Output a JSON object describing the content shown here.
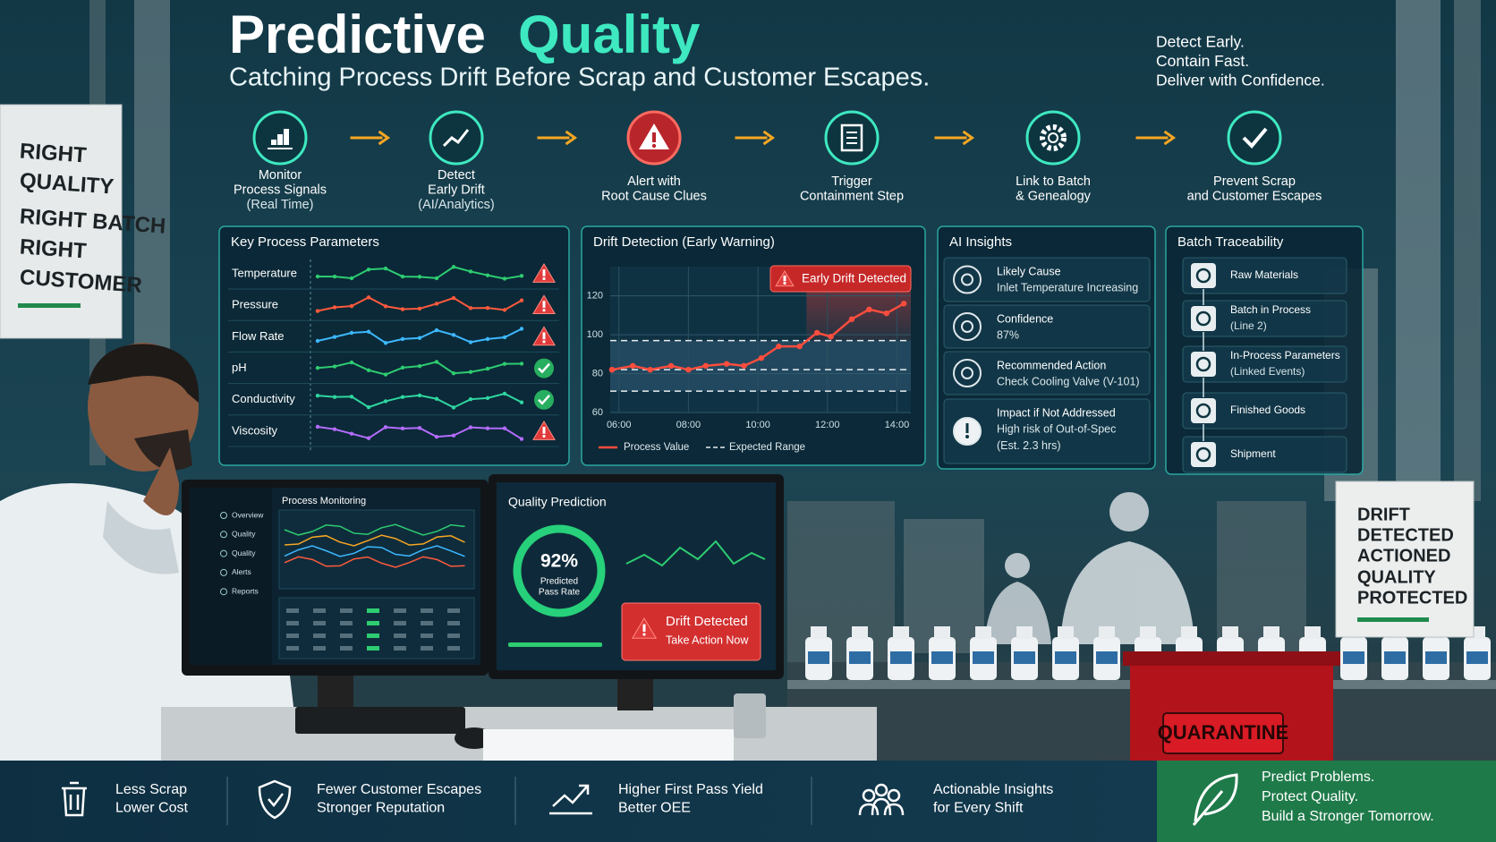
{
  "header": {
    "title_1": "Predictive",
    "title_2": "Quality",
    "subtitle": "Catching Process Drift Before Scrap and Customer Escapes.",
    "tagline": [
      "Detect Early.",
      "Contain Fast.",
      "Deliver with Confidence."
    ]
  },
  "steps": [
    {
      "lines": [
        "Monitor",
        "Process Signals",
        "(Real Time)"
      ],
      "alert": false
    },
    {
      "lines": [
        "Detect",
        "Early Drift",
        "(AI/Analytics)"
      ],
      "alert": false
    },
    {
      "lines": [
        "Alert with",
        "Root Cause Clues"
      ],
      "alert": true
    },
    {
      "lines": [
        "Trigger",
        "Containment Step"
      ],
      "alert": false
    },
    {
      "lines": [
        "Link to Batch",
        "& Genealogy"
      ],
      "alert": false
    },
    {
      "lines": [
        "Prevent Scrap",
        "and Customer Escapes"
      ],
      "alert": false
    }
  ],
  "key_process_parameters": {
    "title": "Key Process Parameters",
    "parameters": [
      {
        "name": "Temperature",
        "color": "#2ecc71",
        "alert": true
      },
      {
        "name": "Pressure",
        "color": "#ff5a3c",
        "alert": true
      },
      {
        "name": "Flow Rate",
        "color": "#3db8ff",
        "alert": true
      },
      {
        "name": "pH",
        "color": "#2ecc71",
        "alert": false
      },
      {
        "name": "Conductivity",
        "color": "#2fd6a0",
        "alert": false
      },
      {
        "name": "Viscosity",
        "color": "#b46cff",
        "alert": true
      }
    ]
  },
  "chart_data": {
    "type": "line",
    "title": "Drift Detection (Early Warning)",
    "x": [
      5.8,
      6.4,
      6.9,
      7.5,
      8,
      8.5,
      9.1,
      9.6,
      10.1,
      10.6,
      11.2,
      11.7,
      12.1,
      12.7,
      13.2,
      13.7,
      14.2
    ],
    "series": [
      {
        "name": "Process Value",
        "color": "#ff4d3d",
        "values": [
          82,
          84,
          82,
          84,
          82,
          84,
          85,
          84,
          88,
          94,
          94,
          101,
          99,
          108,
          113,
          111,
          116
        ]
      }
    ],
    "reference": {
      "name": "Expected Range",
      "values": [
        97,
        82,
        71
      ]
    },
    "xlim": [
      5.75,
      14.4
    ],
    "xticks": [
      {
        "value": 6,
        "label": "06:00"
      },
      {
        "value": 8,
        "label": "08:00"
      },
      {
        "value": 10,
        "label": "10:00"
      },
      {
        "value": 12,
        "label": "12:00"
      },
      {
        "value": 14,
        "label": "14:00"
      }
    ],
    "ylim": [
      60,
      135
    ],
    "yticks": [
      60,
      80,
      100,
      120
    ],
    "grid": true,
    "annotation": "Early Drift Detected",
    "alert_from": 11.4
  },
  "ai_insights": {
    "title": "AI Insights",
    "items": [
      {
        "label": "Likely Cause",
        "detail": [
          "Inlet Temperature Increasing"
        ]
      },
      {
        "label": "Confidence",
        "detail": [
          "87%"
        ]
      },
      {
        "label": "Recommended Action",
        "detail": [
          "Check Cooling Valve (V-101)"
        ]
      },
      {
        "label": "Impact if Not Addressed",
        "detail": [
          "High risk of Out-of-Spec",
          "(Est. 2.3 hrs)"
        ]
      }
    ]
  },
  "batch_traceability": {
    "title": "Batch Traceability",
    "items": [
      [
        "Raw Materials"
      ],
      [
        "Batch in Process",
        "(Line 2)"
      ],
      [
        "In-Process Parameters",
        "(Linked Events)"
      ],
      [
        "Finished Goods"
      ],
      [
        "Shipment"
      ]
    ]
  },
  "monitor_left": {
    "title": "Process Monitoring",
    "nav": [
      "Overview",
      "Quality",
      "Quality",
      "Alerts",
      "Reports"
    ]
  },
  "monitor_right": {
    "title": "Quality Prediction",
    "pass_rate": "92%",
    "pass_rate_label": [
      "Predicted",
      "Pass Rate"
    ],
    "alert_title": "Drift Detected",
    "alert_action": "Take Action Now"
  },
  "signs": {
    "left": [
      "RIGHT",
      "QUALITY",
      "RIGHT BATCH",
      "RIGHT",
      "CUSTOMER"
    ],
    "right": [
      "DRIFT",
      "DETECTED",
      "ACTIONED",
      "QUALITY",
      "PROTECTED"
    ],
    "quarantine": "QUARANTINE"
  },
  "benefits": [
    [
      "Less Scrap",
      "Lower Cost"
    ],
    [
      "Fewer Customer Escapes",
      "Stronger Reputation"
    ],
    [
      "Higher First Pass Yield",
      "Better OEE"
    ],
    [
      "Actionable Insights",
      "for Every Shift"
    ]
  ],
  "closing": [
    "Predict Problems.",
    "Protect Quality.",
    "Build a Stronger Tomorrow."
  ]
}
